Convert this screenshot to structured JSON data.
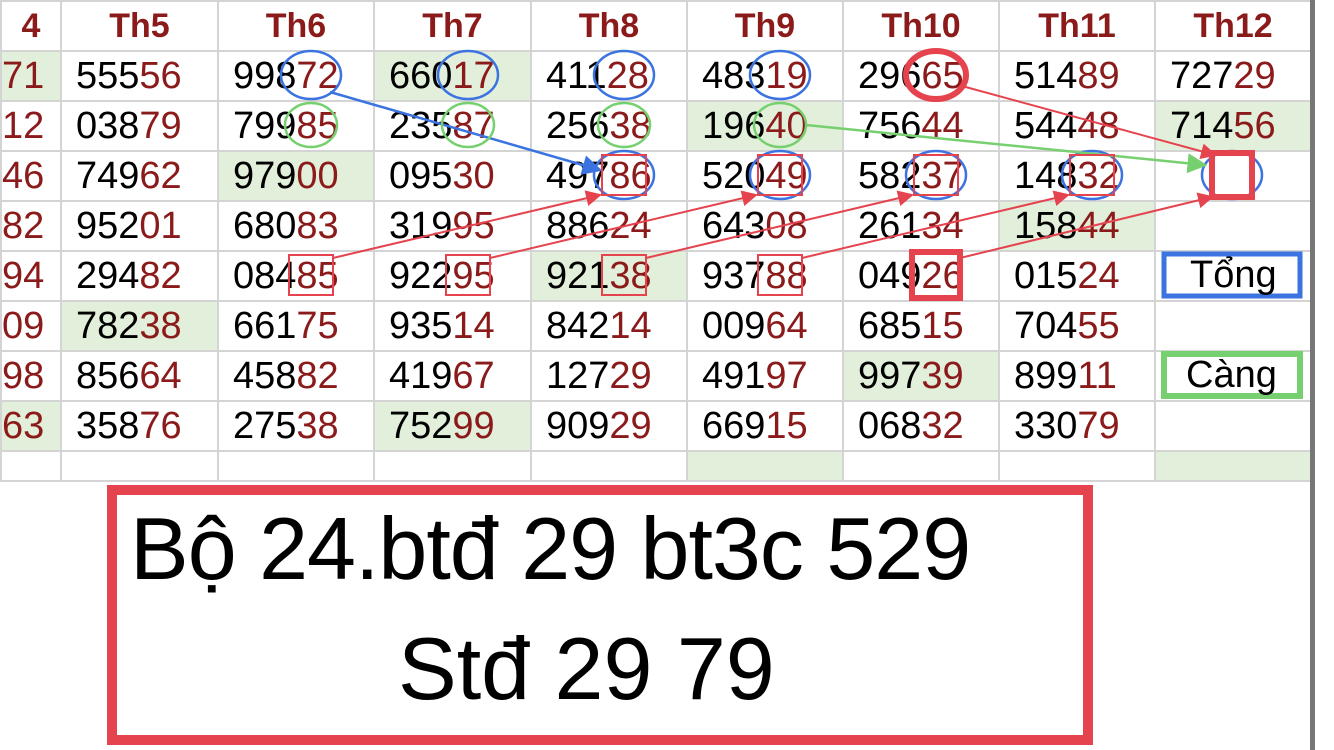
{
  "headers": [
    "4",
    "Th5",
    "Th6",
    "Th7",
    "Th8",
    "Th9",
    "Th10",
    "Th11",
    "Th12"
  ],
  "rows": [
    [
      "71",
      "55556",
      "99872",
      "66017",
      "41128",
      "48319",
      "29665",
      "51489",
      "72729"
    ],
    [
      "12",
      "03879",
      "79985",
      "23587",
      "25638",
      "19640",
      "75644",
      "54448",
      "71456"
    ],
    [
      "46",
      "74962",
      "97900",
      "09530",
      "49786",
      "52049",
      "58237",
      "14832",
      ""
    ],
    [
      "82",
      "95201",
      "68083",
      "31995",
      "88624",
      "64308",
      "26134",
      "15844",
      ""
    ],
    [
      "94",
      "29482",
      "08485",
      "92295",
      "92138",
      "93788",
      "04926",
      "01524",
      ""
    ],
    [
      "09",
      "78238",
      "66175",
      "93514",
      "84214",
      "00964",
      "68515",
      "70455",
      ""
    ],
    [
      "98",
      "85664",
      "45882",
      "41967",
      "12729",
      "49197",
      "99739",
      "89911",
      ""
    ],
    [
      "63",
      "35876",
      "27538",
      "75299",
      "90929",
      "66915",
      "06832",
      "33079",
      ""
    ],
    [
      "",
      "",
      "",
      "",
      "",
      "",
      "",
      "",
      ""
    ]
  ],
  "highlighted_cells": [
    [
      0,
      0
    ],
    [
      0,
      3
    ],
    [
      1,
      5
    ],
    [
      1,
      8
    ],
    [
      2,
      2
    ],
    [
      3,
      7
    ],
    [
      4,
      4
    ],
    [
      5,
      1
    ],
    [
      6,
      6
    ],
    [
      7,
      0
    ],
    [
      7,
      3
    ],
    [
      8,
      5
    ],
    [
      8,
      8
    ]
  ],
  "annotations": {
    "tong_label": "Tổng",
    "cang_label": "Càng",
    "summary_line1": "Bộ 24.btđ 29 bt3c 529",
    "summary_line2": "Stđ 29 79"
  },
  "colors": {
    "number_tail": "#8b1a1a",
    "highlight": "#e2efda",
    "blue": "#3b74e0",
    "green": "#77d070",
    "red": "#e5444f"
  }
}
